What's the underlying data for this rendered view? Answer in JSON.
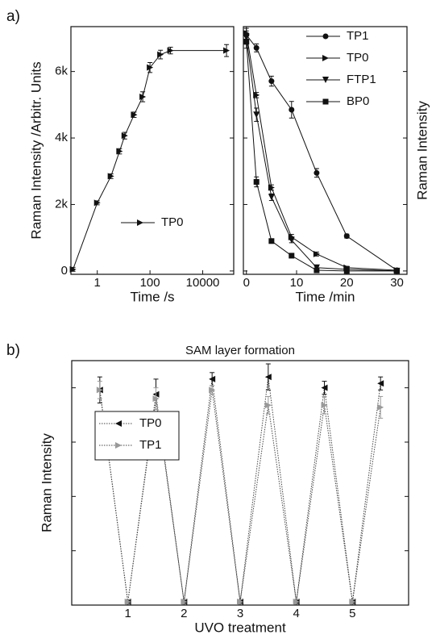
{
  "chart_data": [
    {
      "type": "line",
      "panel_label": "a)",
      "xlabel": "Time /s",
      "ylabel": "Raman Intensity /Arbitr. Units",
      "ylabel_side": "left",
      "xscale": "log",
      "xlim": [
        0.1,
        150000
      ],
      "xticks": [
        1,
        100,
        10000
      ],
      "ylim": [
        -100,
        7350
      ],
      "yticks": [
        0,
        {
          "value": 2000,
          "label": "2k"
        },
        {
          "value": 4000,
          "label": "4k"
        },
        {
          "value": 6000,
          "label": "6k"
        }
      ],
      "ytick_labels": true,
      "legend": "lower right",
      "linestyle": "solid",
      "x": [
        0.12,
        1,
        3.3,
        7,
        11,
        25,
        53,
        100,
        250,
        600,
        80000
      ],
      "series": [
        {
          "name": "TP0",
          "color": "#111111",
          "marker": "triangle-right",
          "values": [
            50,
            2050,
            2850,
            3600,
            4070,
            4700,
            5240,
            6120,
            6510,
            6630,
            6630
          ],
          "errors": [
            60,
            60,
            70,
            80,
            100,
            80,
            150,
            150,
            130,
            100,
            180
          ]
        }
      ]
    },
    {
      "type": "line",
      "xlabel": "Time /min",
      "ylabel": "Raman Intensity",
      "ylabel_side": "right",
      "xscale": "linear",
      "xlim": [
        -0.6,
        32
      ],
      "xticks": [
        0,
        10,
        20,
        30
      ],
      "ylim": [
        -100,
        7350
      ],
      "yticks": [
        0,
        2000,
        4000,
        6000
      ],
      "ytick_labels": false,
      "legend": "upper right",
      "linestyle": "solid",
      "x": [
        0,
        2,
        5,
        9,
        14,
        20,
        30
      ],
      "series": [
        {
          "name": "TP1",
          "color": "#111111",
          "marker": "circle",
          "values": [
            7100,
            6710,
            5710,
            4850,
            2950,
            1050,
            20
          ],
          "errors": [
            200,
            120,
            150,
            250,
            130,
            60,
            40
          ]
        },
        {
          "name": "TP0",
          "color": "#111111",
          "marker": "triangle-right",
          "values": [
            7150,
            5290,
            2510,
            1020,
            510,
            100,
            20
          ],
          "errors": [
            200,
            80,
            80,
            80,
            60,
            40,
            40
          ]
        },
        {
          "name": "FTP1",
          "color": "#111111",
          "marker": "triangle-down",
          "values": [
            7020,
            4700,
            2220,
            930,
            100,
            50,
            0
          ],
          "errors": [
            200,
            200,
            100,
            80,
            40,
            40,
            40
          ]
        },
        {
          "name": "BP0",
          "color": "#111111",
          "marker": "square",
          "values": [
            6900,
            2680,
            900,
            460,
            20,
            0,
            0
          ],
          "errors": [
            200,
            150,
            60,
            40,
            40,
            40,
            40
          ]
        }
      ]
    },
    {
      "type": "line",
      "panel_label": "b)",
      "title": "SAM layer formation",
      "xlabel": "UVO treatment",
      "ylabel": "Raman Intensity",
      "ylabel_side": "left",
      "xscale": "linear",
      "xlim": [
        0,
        6
      ],
      "xticks": [
        1,
        2,
        3,
        4,
        5
      ],
      "ylim": [
        0,
        1.125
      ],
      "yticks": [
        0.25,
        0.5,
        0.75,
        1.0
      ],
      "ytick_labels": false,
      "legend": "center left",
      "legend_frame": true,
      "linestyle": "dotted",
      "x": [
        0.5,
        1,
        1.5,
        2,
        2.5,
        3,
        3.5,
        4,
        4.5,
        5,
        5.5
      ],
      "series": [
        {
          "name": "TP0",
          "color": "#111111",
          "marker": "triangle-left",
          "values": [
            0.99,
            0.015,
            0.97,
            0.015,
            1.04,
            0.015,
            1.05,
            0.015,
            1.0,
            0.015,
            1.02
          ],
          "errors": [
            0.06,
            0.01,
            0.07,
            0.01,
            0.03,
            0.01,
            0.06,
            0.01,
            0.03,
            0.01,
            0.03
          ]
        },
        {
          "name": "TP1",
          "color": "#999999",
          "marker": "triangle-right",
          "values": [
            0.99,
            0.015,
            0.95,
            0.015,
            0.99,
            0.015,
            0.92,
            0.015,
            0.92,
            0.015,
            0.91
          ],
          "errors": [
            0.04,
            0.01,
            0.05,
            0.01,
            0.02,
            0.01,
            0.04,
            0.01,
            0.04,
            0.01,
            0.05
          ]
        }
      ]
    }
  ]
}
